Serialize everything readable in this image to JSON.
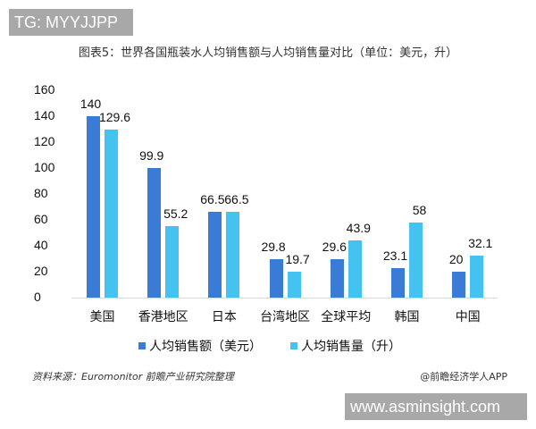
{
  "badges": {
    "tg": "TG: MYYJJPP",
    "url": "www.asminsight.com"
  },
  "colors": {
    "series1": "#3a7bd5",
    "series2": "#45c3f0",
    "axis": "#d9d9d9"
  },
  "chart_data": {
    "type": "bar",
    "title": "图表5：世界各国瓶装水人均销售额与人均销售量对比（单位：美元，升）",
    "categories": [
      "美国",
      "香港地区",
      "日本",
      "台湾地区",
      "全球平均",
      "韩国",
      "中国"
    ],
    "series": [
      {
        "name": "人均销售额（美元）",
        "values": [
          140,
          99.9,
          66.5,
          29.8,
          29.6,
          23.1,
          20
        ]
      },
      {
        "name": "人均销售量（升）",
        "values": [
          129.6,
          55.2,
          66.5,
          19.7,
          43.9,
          58,
          32.1
        ]
      }
    ],
    "value_labels": {
      "s1": [
        "140",
        "99.9",
        "66.5",
        "29.8",
        "29.6",
        "23.1",
        "20"
      ],
      "s2": [
        "129.6",
        "55.2",
        "66.5",
        "19.7",
        "43.9",
        "58",
        "32.1"
      ]
    },
    "yticks": [
      "0",
      "20",
      "40",
      "60",
      "80",
      "100",
      "120",
      "140",
      "160"
    ],
    "xlabel": "",
    "ylabel": "",
    "ylim": [
      0,
      160
    ],
    "grid": false,
    "legend_position": "bottom"
  },
  "footer": {
    "source": "资料来源：Euromonitor 前瞻产业研究院整理",
    "credit": "@前瞻经济学人APP"
  }
}
